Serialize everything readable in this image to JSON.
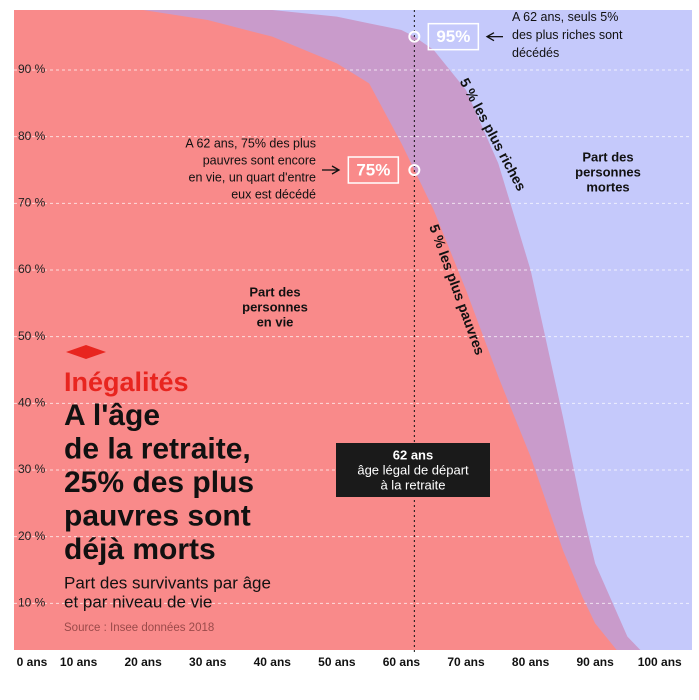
{
  "chart_data": {
    "type": "area",
    "title": "Inégalités",
    "headline": [
      "A l'âge",
      "de la retraite,",
      "25% des plus",
      "pauvres sont",
      "déjà morts"
    ],
    "subtitle": [
      "Part des survivants par âge",
      "et par niveau de vie"
    ],
    "source": "Source : Insee données 2018",
    "background_color": "#c5c9fb",
    "x": [
      0,
      10,
      20,
      30,
      40,
      50,
      55,
      60,
      62,
      65,
      70,
      75,
      80,
      85,
      88,
      90,
      95,
      100
    ],
    "series": [
      {
        "name": "5 % les plus riches",
        "color": "#c99bcb",
        "values": [
          100,
          99.9,
          99.8,
          99.5,
          99,
          98,
          97,
          96,
          95,
          93,
          87,
          76,
          60,
          38,
          24,
          16,
          5,
          0
        ]
      },
      {
        "name": "5 % les plus pauvres",
        "color": "#f98a8a",
        "values": [
          100,
          99.5,
          99,
          97.5,
          95,
          91,
          88,
          79,
          75,
          69,
          57,
          44,
          32,
          18,
          11,
          7,
          1,
          0
        ]
      }
    ],
    "xlim": [
      0,
      105
    ],
    "ylim": [
      3,
      99
    ],
    "xticks": [
      {
        "value": 0,
        "label": "0 ans"
      },
      {
        "value": 10,
        "label": "10 ans"
      },
      {
        "value": 20,
        "label": "20 ans"
      },
      {
        "value": 30,
        "label": "30 ans"
      },
      {
        "value": 40,
        "label": "40 ans"
      },
      {
        "value": 50,
        "label": "50 ans"
      },
      {
        "value": 60,
        "label": "60 ans"
      },
      {
        "value": 70,
        "label": "70 ans"
      },
      {
        "value": 80,
        "label": "80 ans"
      },
      {
        "value": 90,
        "label": "90 ans"
      },
      {
        "value": 100,
        "label": "100 ans"
      }
    ],
    "yticks": [
      {
        "value": 10,
        "label": "10 %"
      },
      {
        "value": 20,
        "label": "20 %"
      },
      {
        "value": 30,
        "label": "30 %"
      },
      {
        "value": 40,
        "label": "40 %"
      },
      {
        "value": 50,
        "label": "50 %"
      },
      {
        "value": 60,
        "label": "60 %"
      },
      {
        "value": 70,
        "label": "70 %"
      },
      {
        "value": 80,
        "label": "80 %"
      },
      {
        "value": 90,
        "label": "90 %"
      }
    ],
    "grid": true,
    "vline": {
      "x": 62,
      "label": [
        "62 ans",
        "âge légal de départ",
        "à la retraite"
      ]
    },
    "points": [
      {
        "x": 62,
        "y": 95,
        "label": "95%",
        "note": [
          "A 62 ans, seuls 5%",
          "des plus riches sont",
          "décédés"
        ]
      },
      {
        "x": 62,
        "y": 75,
        "label": "75%",
        "note": [
          "A 62 ans, 75% des plus",
          "pauvres sont encore",
          "en vie, un quart d'entre",
          "eux est décédé"
        ]
      }
    ],
    "region_labels": [
      [
        "Part des",
        "personnes",
        "en vie"
      ],
      [
        "Part des",
        "personnes",
        "mortes"
      ]
    ]
  }
}
